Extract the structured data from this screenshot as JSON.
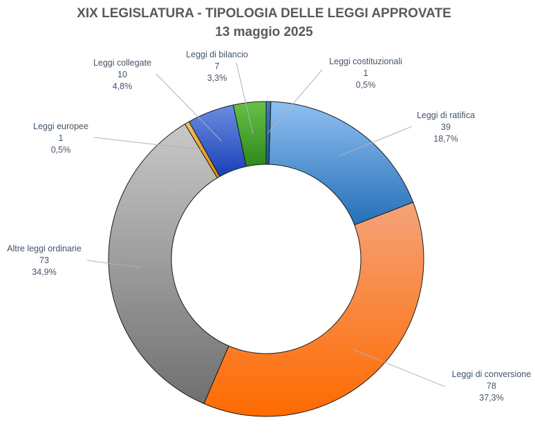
{
  "title": "XIX LEGISLATURA - TIPOLOGIA DELLE LEGGI APPROVATE",
  "subtitle": "13 maggio 2025",
  "chart_data": {
    "type": "pie",
    "variant": "doughnut",
    "title": "XIX LEGISLATURA - TIPOLOGIA DELLE LEGGI APPROVATE",
    "subtitle": "13 maggio 2025",
    "categories": [
      "Leggi costituzionali",
      "Leggi di ratifica",
      "Leggi di conversione",
      "Altre leggi ordinarie",
      "Leggi europee",
      "Leggi collegate",
      "Leggi di bilancio"
    ],
    "values": [
      1,
      39,
      78,
      73,
      1,
      10,
      7
    ],
    "percent_labels": [
      "0,5%",
      "18,7%",
      "37,3%",
      "34,9%",
      "0,5%",
      "4,8%",
      "3,3%"
    ],
    "colors": [
      "#2e6da4",
      "#2e75b6",
      "#e06010",
      "#8c8c8c",
      "#f0a020",
      "#2250c0",
      "#3c9a28"
    ],
    "legend": "none",
    "data_labels": "outside with leader lines"
  }
}
